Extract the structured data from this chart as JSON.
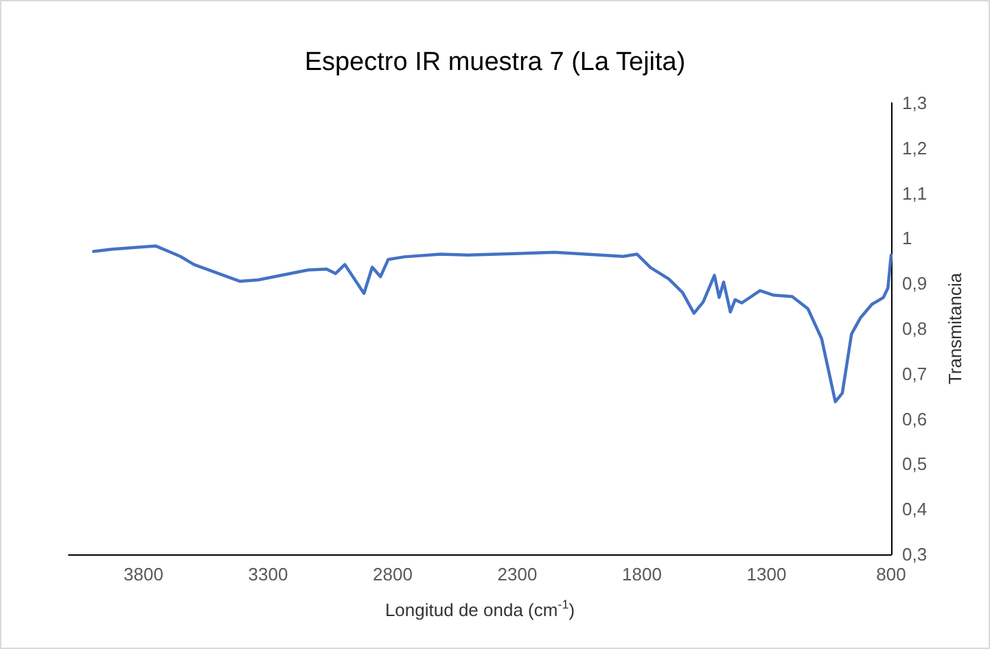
{
  "chart_data": {
    "type": "line",
    "title": "Espectro IR muestra 7 (La Tejita)",
    "xlabel": "Longitud de onda (cm$^{-1}$)",
    "ylabel": "Transmitancia",
    "x": [
      4000,
      3926,
      3750,
      3652,
      3597,
      3414,
      3340,
      3139,
      3065,
      3029,
      2992,
      2915,
      2882,
      2849,
      2818,
      2754,
      2608,
      2498,
      2150,
      1875,
      1820,
      1765,
      1692,
      1637,
      1591,
      1554,
      1509,
      1490,
      1472,
      1445,
      1426,
      1399,
      1326,
      1271,
      1197,
      1134,
      1079,
      1024,
      996,
      959,
      923,
      877,
      831,
      813,
      800
    ],
    "series": [
      {
        "color": "#4472c4",
        "values": [
          0.971,
          0.976,
          0.983,
          0.96,
          0.942,
          0.905,
          0.908,
          0.93,
          0.932,
          0.922,
          0.942,
          0.878,
          0.936,
          0.915,
          0.953,
          0.959,
          0.965,
          0.963,
          0.969,
          0.96,
          0.965,
          0.935,
          0.91,
          0.88,
          0.834,
          0.859,
          0.918,
          0.869,
          0.903,
          0.837,
          0.864,
          0.857,
          0.884,
          0.874,
          0.871,
          0.844,
          0.778,
          0.638,
          0.657,
          0.788,
          0.824,
          0.854,
          0.869,
          0.89,
          0.963
        ]
      }
    ],
    "xlim": [
      4100,
      800
    ],
    "xticks": [
      3800,
      3300,
      2800,
      2300,
      1800,
      1300,
      800
    ],
    "ylim": [
      0.3,
      1.3
    ],
    "yticks": [
      {
        "value": 0.3,
        "label": "0,3"
      },
      {
        "value": 0.4,
        "label": "0,4"
      },
      {
        "value": 0.5,
        "label": "0,5"
      },
      {
        "value": 0.6,
        "label": "0,6"
      },
      {
        "value": 0.7,
        "label": "0,7"
      },
      {
        "value": 0.8,
        "label": "0,8"
      },
      {
        "value": 0.9,
        "label": "0,9"
      },
      {
        "value": 1,
        "label": "1"
      },
      {
        "value": 1.1,
        "label": "1,1"
      },
      {
        "value": 1.2,
        "label": "1,2"
      },
      {
        "value": 1.3,
        "label": "1,3"
      }
    ],
    "marker": "none",
    "line_style": "solid"
  }
}
